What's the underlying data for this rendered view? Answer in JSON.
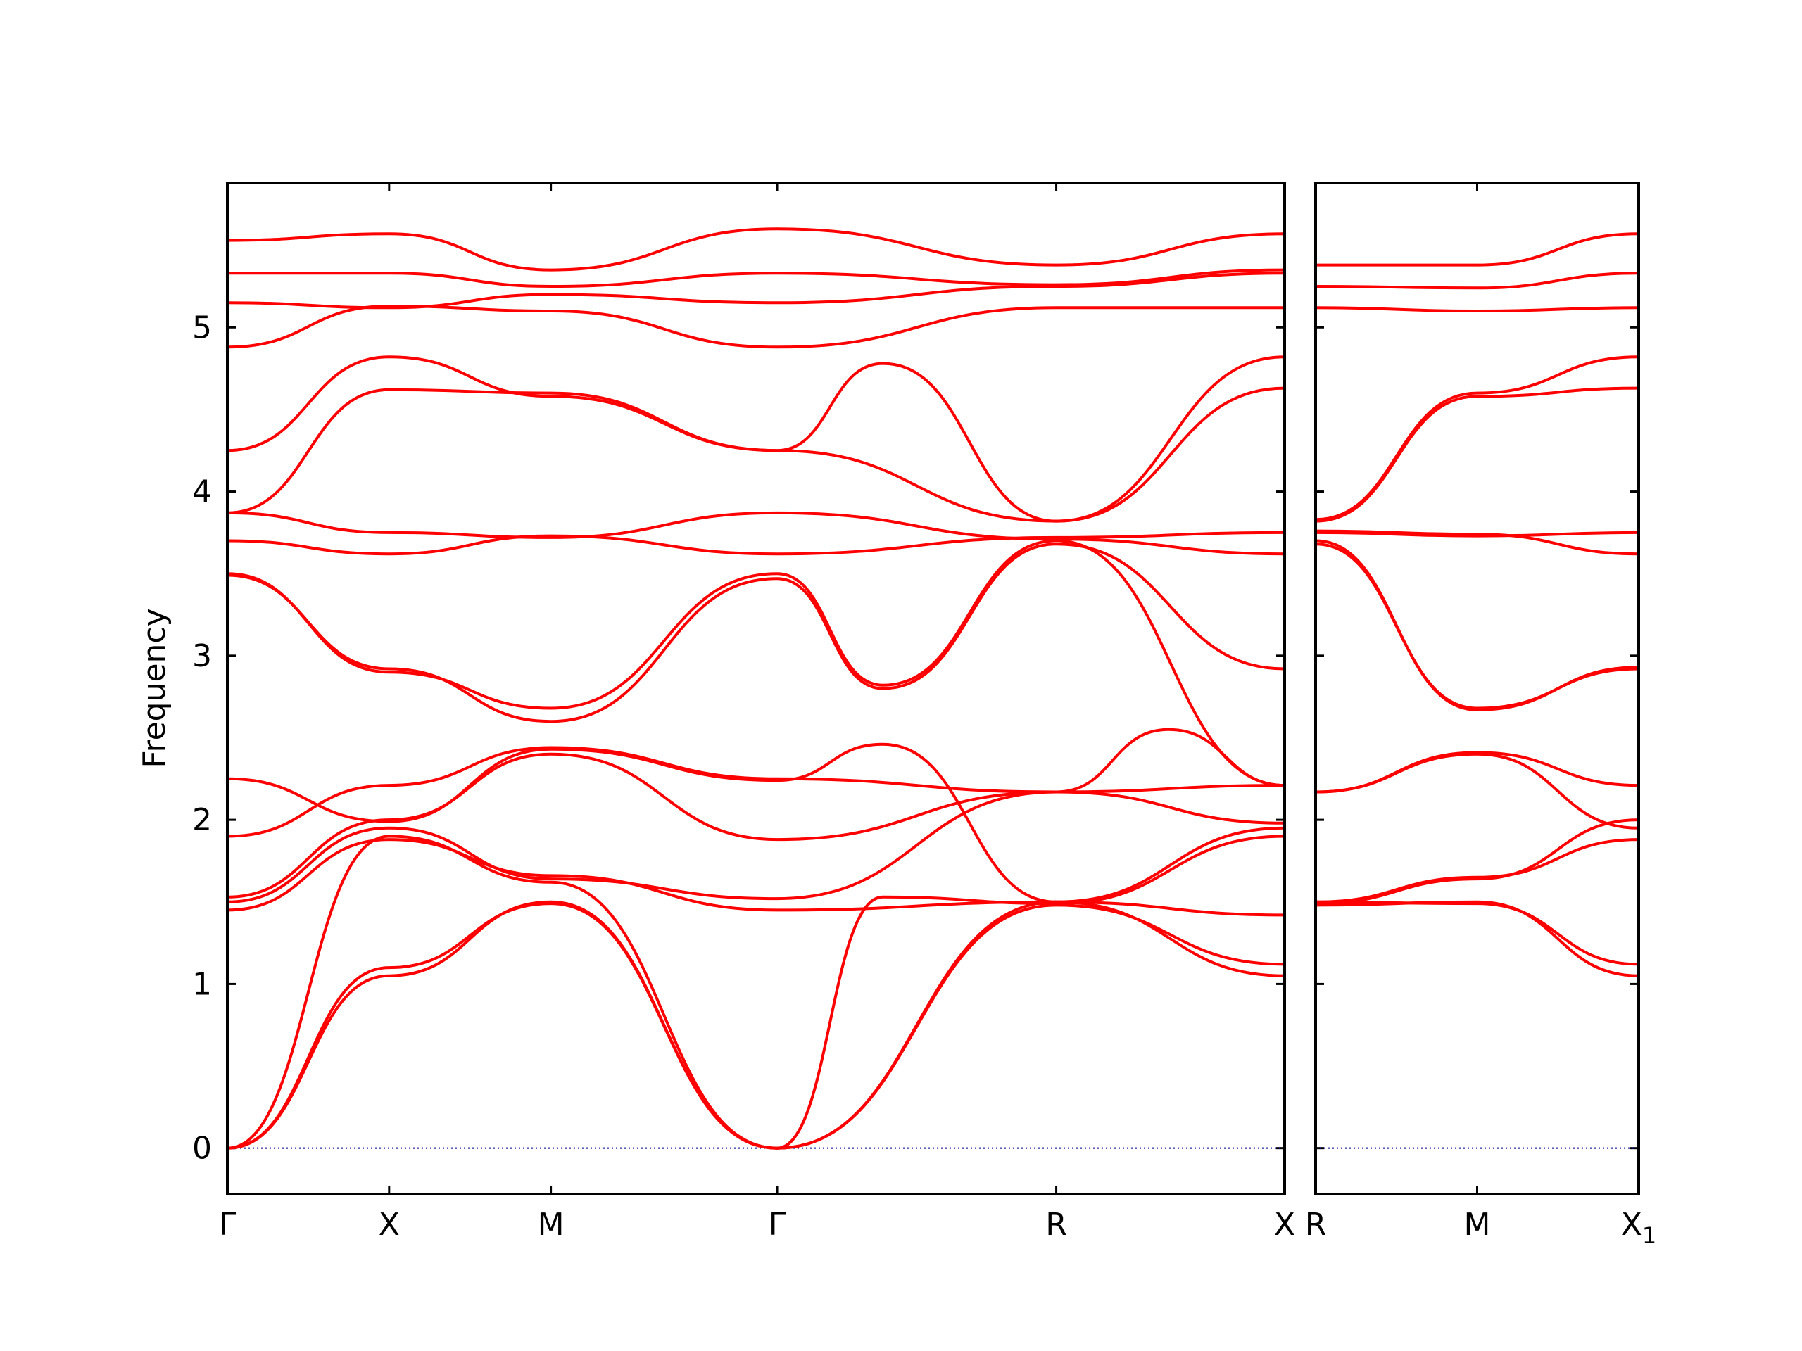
{
  "chart_data": [
    {
      "type": "line",
      "ylabel": "Frequency",
      "xlabel": "",
      "ylim": [
        -0.28,
        5.88
      ],
      "yticks": [
        0,
        1,
        2,
        3,
        4,
        5
      ],
      "xlim": [
        0,
        1
      ],
      "xticks": [
        {
          "pos": 0.0,
          "label": "Γ"
        },
        {
          "pos": 0.153,
          "label": "X"
        },
        {
          "pos": 0.306,
          "label": "M"
        },
        {
          "pos": 0.52,
          "label": "Γ"
        },
        {
          "pos": 0.784,
          "label": "R"
        },
        {
          "pos": 1.0,
          "label": "X"
        }
      ],
      "line_color": "#ff0000",
      "zero_line_color": "#00008b",
      "grid": false,
      "series": [
        {
          "x": [
            0,
            0.153,
            0.306,
            0.52,
            0.784,
            1.0
          ],
          "y": [
            0,
            1.05,
            1.5,
            0,
            1.5,
            1.05
          ]
        },
        {
          "x": [
            0,
            0.153,
            0.306,
            0.52,
            0.784,
            1.0
          ],
          "y": [
            0,
            1.1,
            1.49,
            0,
            1.48,
            1.12
          ]
        },
        {
          "x": [
            0,
            0.153,
            0.306,
            0.52,
            0.62,
            0.784,
            1.0
          ],
          "y": [
            0,
            1.9,
            1.62,
            0,
            1.53,
            1.49,
            1.9
          ]
        },
        {
          "x": [
            0,
            0.153,
            0.306,
            0.52,
            0.784,
            1.0
          ],
          "y": [
            1.45,
            1.88,
            1.66,
            1.45,
            1.5,
            1.95
          ]
        },
        {
          "x": [
            0,
            0.153,
            0.306,
            0.52,
            0.784,
            1.0
          ],
          "y": [
            1.5,
            1.95,
            1.64,
            1.52,
            2.17,
            1.98
          ]
        },
        {
          "x": [
            0,
            0.153,
            0.306,
            0.52,
            0.784,
            1.0
          ],
          "y": [
            1.53,
            2.0,
            2.4,
            1.88,
            2.17,
            2.21
          ]
        },
        {
          "x": [
            0,
            0.153,
            0.306,
            0.52,
            0.784,
            0.89,
            1.0
          ],
          "y": [
            1.9,
            2.21,
            2.44,
            2.25,
            2.17,
            2.55,
            2.21
          ]
        },
        {
          "x": [
            0,
            0.153,
            0.306,
            0.52,
            0.62,
            0.784,
            1.0
          ],
          "y": [
            2.25,
            1.99,
            2.43,
            2.24,
            2.46,
            1.5,
            1.42
          ]
        },
        {
          "x": [
            0,
            0.153,
            0.306,
            0.52,
            0.62,
            0.784,
            1.0
          ],
          "y": [
            3.49,
            2.92,
            2.6,
            3.47,
            2.8,
            3.68,
            2.92
          ]
        },
        {
          "x": [
            0,
            0.153,
            0.306,
            0.52,
            0.62,
            0.784,
            1.0
          ],
          "y": [
            3.5,
            2.9,
            2.68,
            3.5,
            2.82,
            3.7,
            2.21
          ]
        },
        {
          "x": [
            0,
            0.153,
            0.306,
            0.52,
            0.784,
            1.0
          ],
          "y": [
            3.7,
            3.62,
            3.73,
            3.62,
            3.72,
            3.75
          ]
        },
        {
          "x": [
            0,
            0.153,
            0.306,
            0.52,
            0.784,
            1.0
          ],
          "y": [
            3.87,
            3.75,
            3.72,
            3.87,
            3.71,
            3.62
          ]
        },
        {
          "x": [
            0,
            0.153,
            0.306,
            0.52,
            0.784,
            1.0
          ],
          "y": [
            3.87,
            4.62,
            4.6,
            4.25,
            3.82,
            4.63
          ]
        },
        {
          "x": [
            0,
            0.153,
            0.306,
            0.52,
            0.62,
            0.784,
            1.0
          ],
          "y": [
            4.25,
            4.82,
            4.58,
            4.25,
            4.78,
            3.82,
            4.82
          ]
        },
        {
          "x": [
            0,
            0.153,
            0.306,
            0.52,
            0.784,
            1.0
          ],
          "y": [
            4.88,
            5.13,
            5.1,
            4.88,
            5.12,
            5.12
          ]
        },
        {
          "x": [
            0,
            0.153,
            0.306,
            0.52,
            0.784,
            1.0
          ],
          "y": [
            5.15,
            5.12,
            5.2,
            5.15,
            5.25,
            5.33
          ]
        },
        {
          "x": [
            0,
            0.153,
            0.306,
            0.52,
            0.784,
            1.0
          ],
          "y": [
            5.33,
            5.33,
            5.25,
            5.33,
            5.26,
            5.35
          ]
        },
        {
          "x": [
            0,
            0.153,
            0.306,
            0.52,
            0.784,
            1.0
          ],
          "y": [
            5.53,
            5.57,
            5.35,
            5.6,
            5.38,
            5.57
          ]
        }
      ]
    },
    {
      "type": "line",
      "ylabel": "",
      "xlabel": "",
      "ylim": [
        -0.28,
        5.88
      ],
      "yticks": [
        0,
        1,
        2,
        3,
        4,
        5
      ],
      "xlim": [
        0,
        1
      ],
      "xticks": [
        {
          "pos": 0.0,
          "label": "R"
        },
        {
          "pos": 0.5,
          "label": "M"
        },
        {
          "pos": 1.0,
          "label": "X"
        }
      ],
      "last_tick_subscript": "1",
      "line_color": "#ff0000",
      "zero_line_color": "#00008b",
      "grid": false,
      "series": [
        {
          "x": [
            0,
            0.5,
            1.0
          ],
          "y": [
            1.48,
            1.5,
            1.05
          ]
        },
        {
          "x": [
            0,
            0.5,
            1.0
          ],
          "y": [
            1.5,
            1.49,
            1.12
          ]
        },
        {
          "x": [
            0,
            0.5,
            1.0
          ],
          "y": [
            1.5,
            1.65,
            1.88
          ]
        },
        {
          "x": [
            0,
            0.5,
            1.0
          ],
          "y": [
            1.49,
            1.64,
            2.0
          ]
        },
        {
          "x": [
            0,
            0.5,
            1.0
          ],
          "y": [
            2.17,
            2.4,
            1.95
          ]
        },
        {
          "x": [
            0,
            0.5,
            1.0
          ],
          "y": [
            2.17,
            2.41,
            2.21
          ]
        },
        {
          "x": [
            0,
            0.5,
            1.0
          ],
          "y": [
            3.68,
            2.68,
            2.92
          ]
        },
        {
          "x": [
            0,
            0.5,
            1.0
          ],
          "y": [
            3.7,
            2.67,
            2.93
          ]
        },
        {
          "x": [
            0,
            0.5,
            1.0
          ],
          "y": [
            3.75,
            3.73,
            3.75
          ]
        },
        {
          "x": [
            0,
            0.5,
            1.0
          ],
          "y": [
            3.76,
            3.74,
            3.62
          ]
        },
        {
          "x": [
            0,
            0.5,
            1.0
          ],
          "y": [
            3.82,
            4.58,
            4.63
          ]
        },
        {
          "x": [
            0,
            0.5,
            1.0
          ],
          "y": [
            3.83,
            4.6,
            4.82
          ]
        },
        {
          "x": [
            0,
            0.5,
            1.0
          ],
          "y": [
            5.12,
            5.1,
            5.12
          ]
        },
        {
          "x": [
            0,
            0.5,
            1.0
          ],
          "y": [
            5.25,
            5.24,
            5.33
          ]
        },
        {
          "x": [
            0,
            0.5,
            1.0
          ],
          "y": [
            5.38,
            5.38,
            5.57
          ]
        }
      ]
    }
  ]
}
